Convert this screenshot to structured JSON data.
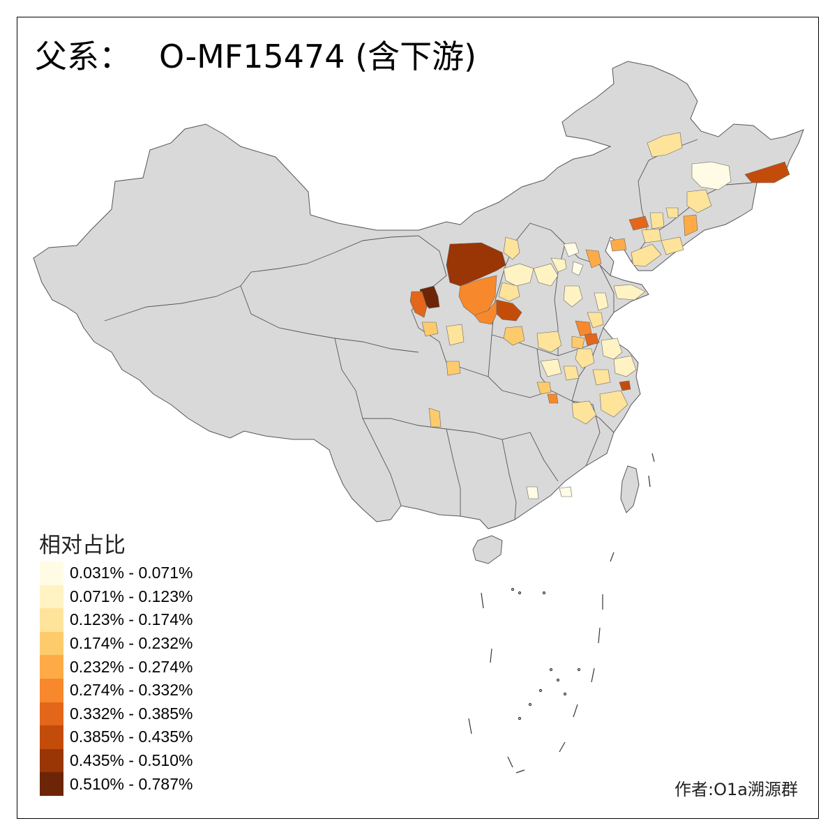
{
  "title": {
    "prefix": "父系：",
    "haplogroup": "O-MF15474 (含下游)"
  },
  "legend": {
    "title": "相对占比",
    "items": [
      {
        "label": "0.031% - 0.071%",
        "color": "#fffbe5"
      },
      {
        "label": "0.071% - 0.123%",
        "color": "#fff3c4"
      },
      {
        "label": "0.123% - 0.174%",
        "color": "#fee39b"
      },
      {
        "label": "0.174% - 0.232%",
        "color": "#fecb6c"
      },
      {
        "label": "0.232% - 0.274%",
        "color": "#feab47"
      },
      {
        "label": "0.274% - 0.332%",
        "color": "#f7882c"
      },
      {
        "label": "0.332% - 0.385%",
        "color": "#e3661a"
      },
      {
        "label": "0.385% - 0.435%",
        "color": "#c44c0a"
      },
      {
        "label": "0.435% - 0.510%",
        "color": "#9a3506"
      },
      {
        "label": "0.510% - 0.787%",
        "color": "#6d2507"
      }
    ]
  },
  "credit": "作者:O1a溯源群",
  "map_colors": {
    "base_fill": "#d9d9d9",
    "border": "#555555"
  }
}
